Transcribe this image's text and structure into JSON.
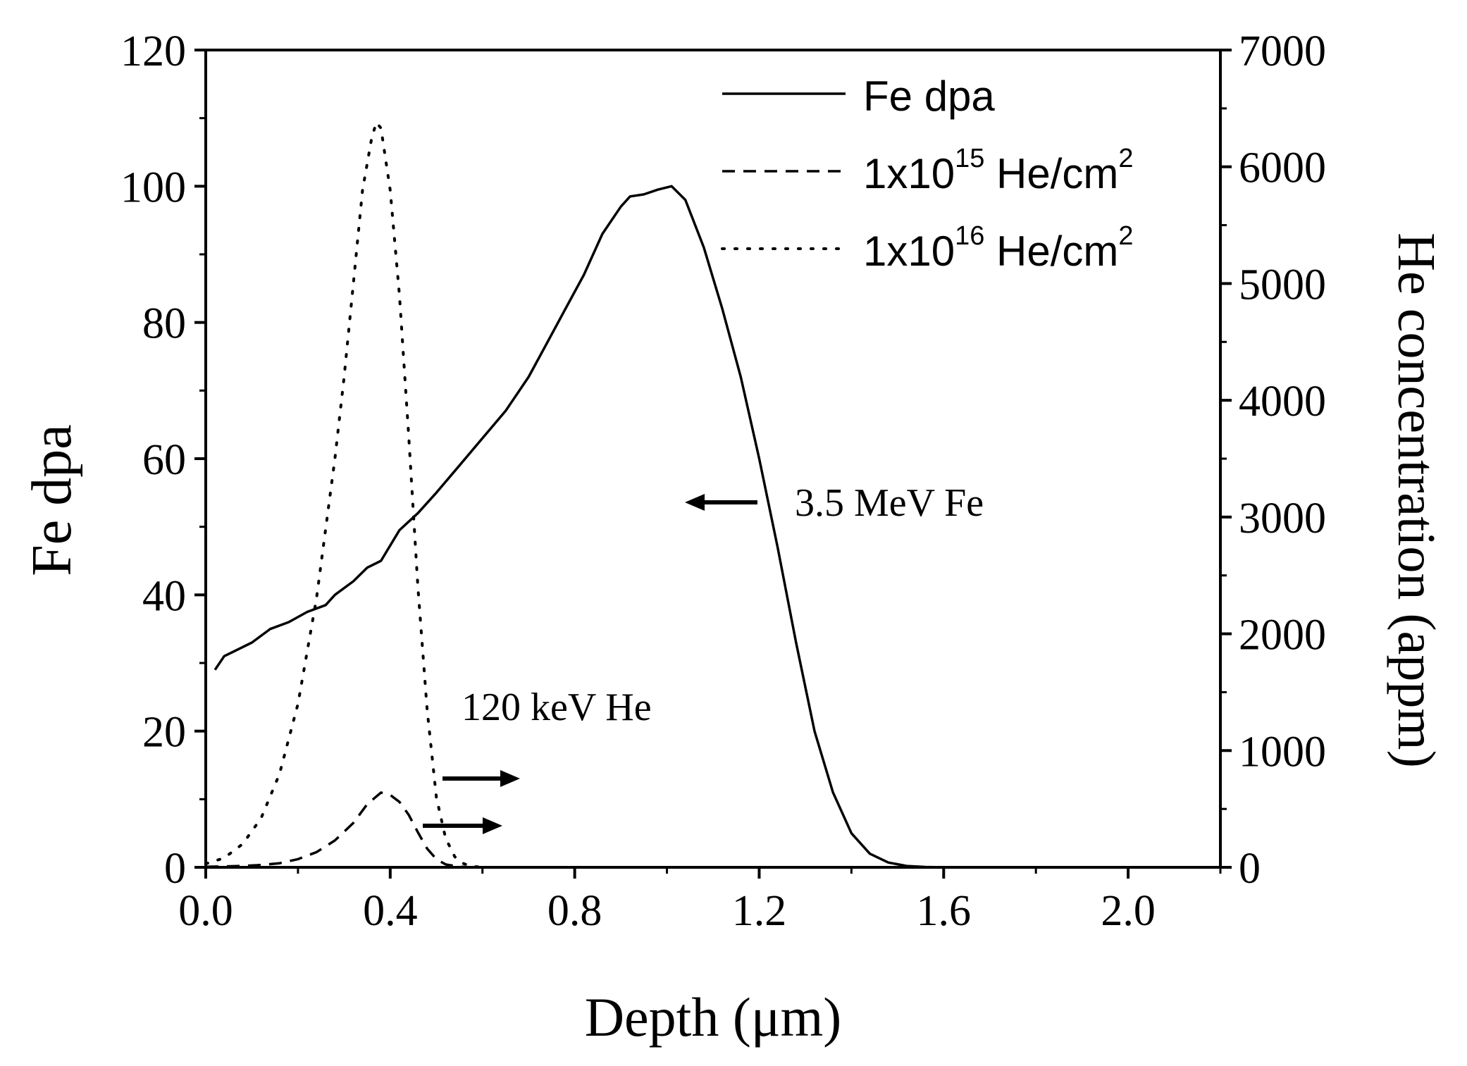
{
  "chart_data": {
    "type": "line",
    "title": "",
    "xlabel": "Depth (μm)",
    "ylabel_left": "Fe dpa",
    "ylabel_right": "He concentration (appm)",
    "xlim": [
      0.0,
      2.2
    ],
    "ylim_left": [
      0,
      120
    ],
    "ylim_right": [
      0,
      7000
    ],
    "x_ticks": [
      "0.0",
      "0.4",
      "0.8",
      "1.2",
      "1.6",
      "2.0"
    ],
    "x_tick_values": [
      0.0,
      0.4,
      0.8,
      1.2,
      1.6,
      2.0
    ],
    "y_left_ticks": [
      "0",
      "20",
      "40",
      "60",
      "80",
      "100",
      "120"
    ],
    "y_left_tick_values": [
      0,
      20,
      40,
      60,
      80,
      100,
      120
    ],
    "y_right_ticks": [
      "0",
      "1000",
      "2000",
      "3000",
      "4000",
      "5000",
      "6000",
      "7000"
    ],
    "y_right_tick_values": [
      0,
      1000,
      2000,
      3000,
      4000,
      5000,
      6000,
      7000
    ],
    "grid": false,
    "legend_position": "top-right",
    "legend": [
      {
        "label": "Fe dpa",
        "style": "solid"
      },
      {
        "label_main": "1x10",
        "label_sup": "15",
        "label_rest": " He/cm",
        "label_sup2": "2",
        "style": "dashed"
      },
      {
        "label_main": "1x10",
        "label_sup": "16",
        "label_rest": " He/cm",
        "label_sup2": "2",
        "style": "dotted"
      }
    ],
    "annotations": [
      {
        "text": "3.5 MeV Fe",
        "arrow": "left",
        "x": 1.28,
        "y_left": 54
      },
      {
        "text": "120 keV He",
        "arrow": "right",
        "x": 0.56,
        "y_left": 23
      }
    ],
    "series": [
      {
        "name": "Fe dpa",
        "axis": "left",
        "style": "solid",
        "x": [
          0.02,
          0.04,
          0.1,
          0.14,
          0.18,
          0.22,
          0.26,
          0.28,
          0.32,
          0.35,
          0.38,
          0.42,
          0.46,
          0.5,
          0.55,
          0.6,
          0.65,
          0.7,
          0.74,
          0.78,
          0.82,
          0.86,
          0.9,
          0.92,
          0.95,
          0.98,
          1.01,
          1.04,
          1.08,
          1.12,
          1.16,
          1.2,
          1.24,
          1.28,
          1.32,
          1.36,
          1.4,
          1.44,
          1.48,
          1.52,
          1.56,
          1.6
        ],
        "y": [
          29,
          31,
          33,
          35,
          36,
          37.5,
          38.5,
          40,
          42,
          44,
          45,
          49.5,
          52,
          55,
          59,
          63,
          67,
          72,
          77,
          82,
          87,
          93,
          97,
          98.5,
          98.8,
          99.5,
          100,
          98,
          91,
          82,
          72,
          60,
          47,
          33,
          20,
          11,
          5,
          2,
          0.7,
          0.2,
          0.05,
          0
        ]
      },
      {
        "name": "1x10^15 He/cm^2",
        "axis": "right",
        "style": "dashed",
        "x": [
          0.0,
          0.04,
          0.08,
          0.12,
          0.16,
          0.2,
          0.24,
          0.28,
          0.32,
          0.35,
          0.38,
          0.4,
          0.42,
          0.44,
          0.46,
          0.48,
          0.5,
          0.52,
          0.55,
          0.58
        ],
        "y": [
          5,
          8,
          12,
          20,
          35,
          70,
          130,
          230,
          380,
          540,
          640,
          620,
          560,
          450,
          300,
          160,
          70,
          25,
          5,
          0
        ]
      },
      {
        "name": "1x10^16 He/cm^2",
        "axis": "right",
        "style": "dotted",
        "x": [
          0.0,
          0.04,
          0.08,
          0.12,
          0.16,
          0.2,
          0.24,
          0.28,
          0.3,
          0.32,
          0.34,
          0.36,
          0.37,
          0.38,
          0.4,
          0.42,
          0.44,
          0.46,
          0.48,
          0.5,
          0.52,
          0.54,
          0.56,
          0.58,
          0.6
        ],
        "y": [
          30,
          80,
          200,
          420,
          800,
          1400,
          2300,
          3500,
          4200,
          5000,
          5800,
          6250,
          6380,
          6330,
          5800,
          4900,
          3700,
          2400,
          1350,
          600,
          250,
          90,
          30,
          8,
          0
        ]
      }
    ]
  }
}
